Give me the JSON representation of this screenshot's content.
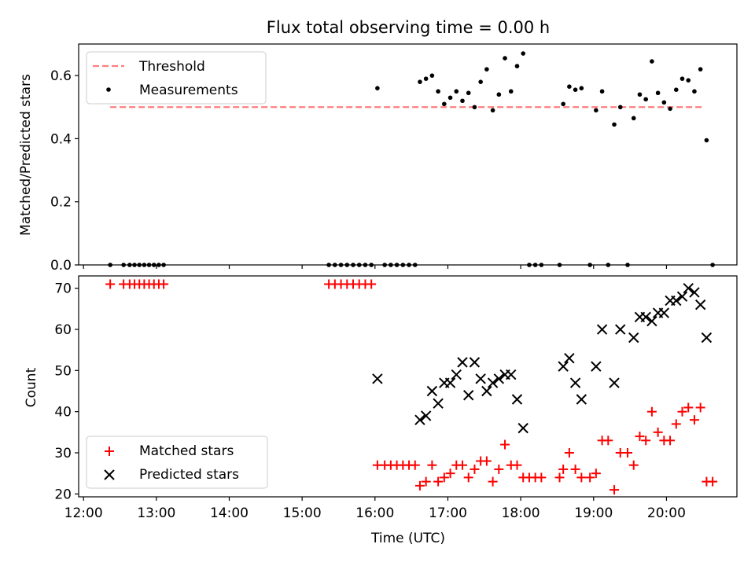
{
  "chart_data": [
    {
      "type": "scatter",
      "title": "Flux total observing time = 0.00 h",
      "xlabel": "",
      "ylabel": "Matched/Predicted stars",
      "xlim": [
        "11:56",
        "20:58"
      ],
      "ylim": [
        0,
        0.7
      ],
      "yticks": [
        0.0,
        0.2,
        0.4,
        0.6
      ],
      "ytick_labels": [
        "0.0",
        "0.2",
        "0.4",
        "0.6"
      ],
      "grid": false,
      "legend_position": "top-left",
      "threshold": {
        "name": "Threshold",
        "y": 0.5,
        "x_start": "12:22",
        "x_end": "20:29",
        "color": "#ff7f7f",
        "style": "dashed"
      },
      "series": [
        {
          "name": "Measurements",
          "color": "#000000",
          "marker": "dot",
          "points": [
            [
              "12:22",
              0
            ],
            [
              "12:33",
              0
            ],
            [
              "12:38",
              0
            ],
            [
              "12:42",
              0
            ],
            [
              "12:46",
              0
            ],
            [
              "12:50",
              0
            ],
            [
              "12:54",
              0
            ],
            [
              "12:58",
              0
            ],
            [
              "13:02",
              0
            ],
            [
              "13:06",
              0
            ],
            [
              "15:22",
              0
            ],
            [
              "15:27",
              0
            ],
            [
              "15:32",
              0
            ],
            [
              "15:37",
              0
            ],
            [
              "15:42",
              0
            ],
            [
              "15:47",
              0
            ],
            [
              "15:52",
              0
            ],
            [
              "15:57",
              0
            ],
            [
              "16:02",
              0.56
            ],
            [
              "16:08",
              0
            ],
            [
              "16:13",
              0
            ],
            [
              "16:18",
              0
            ],
            [
              "16:23",
              0
            ],
            [
              "16:28",
              0
            ],
            [
              "16:33",
              0
            ],
            [
              "16:37",
              0.58
            ],
            [
              "16:42",
              0.59
            ],
            [
              "16:47",
              0.6
            ],
            [
              "16:52",
              0.55
            ],
            [
              "16:57",
              0.51
            ],
            [
              "17:02",
              0.53
            ],
            [
              "17:07",
              0.55
            ],
            [
              "17:12",
              0.52
            ],
            [
              "17:17",
              0.545
            ],
            [
              "17:22",
              0.5
            ],
            [
              "17:27",
              0.58
            ],
            [
              "17:32",
              0.62
            ],
            [
              "17:37",
              0.49
            ],
            [
              "17:42",
              0.54
            ],
            [
              "17:47",
              0.655
            ],
            [
              "17:52",
              0.55
            ],
            [
              "17:57",
              0.63
            ],
            [
              "18:02",
              0.67
            ],
            [
              "18:07",
              0
            ],
            [
              "18:12",
              0
            ],
            [
              "18:17",
              0
            ],
            [
              "18:32",
              0
            ],
            [
              "18:35",
              0.51
            ],
            [
              "18:40",
              0.565
            ],
            [
              "18:45",
              0.555
            ],
            [
              "18:50",
              0.56
            ],
            [
              "18:57",
              0
            ],
            [
              "19:02",
              0.49
            ],
            [
              "19:07",
              0.55
            ],
            [
              "19:12",
              0
            ],
            [
              "19:17",
              0.445
            ],
            [
              "19:22",
              0.5
            ],
            [
              "19:28",
              0
            ],
            [
              "19:33",
              0.465
            ],
            [
              "19:38",
              0.54
            ],
            [
              "19:43",
              0.525
            ],
            [
              "19:48",
              0.645
            ],
            [
              "19:53",
              0.545
            ],
            [
              "19:58",
              0.515
            ],
            [
              "20:03",
              0.495
            ],
            [
              "20:08",
              0.555
            ],
            [
              "20:13",
              0.59
            ],
            [
              "20:18",
              0.585
            ],
            [
              "20:23",
              0.55
            ],
            [
              "20:28",
              0.62
            ],
            [
              "20:33",
              0.395
            ],
            [
              "20:38",
              0
            ]
          ]
        }
      ]
    },
    {
      "type": "scatter",
      "title": "",
      "xlabel": "Time (UTC)",
      "ylabel": "Count",
      "xlim": [
        "11:56",
        "20:58"
      ],
      "ylim": [
        19.3,
        73
      ],
      "xticks": [
        "12:00",
        "13:00",
        "14:00",
        "15:00",
        "16:00",
        "17:00",
        "18:00",
        "19:00",
        "20:00"
      ],
      "yticks": [
        20,
        30,
        40,
        50,
        60,
        70
      ],
      "ytick_labels": [
        "20",
        "30",
        "40",
        "50",
        "60",
        "70"
      ],
      "grid": false,
      "legend_position": "bottom-left",
      "series": [
        {
          "name": "Matched stars",
          "color": "#ff0000",
          "marker": "plus",
          "points": [
            [
              "12:22",
              71
            ],
            [
              "12:33",
              71
            ],
            [
              "12:38",
              71
            ],
            [
              "12:42",
              71
            ],
            [
              "12:46",
              71
            ],
            [
              "12:50",
              71
            ],
            [
              "12:54",
              71
            ],
            [
              "12:58",
              71
            ],
            [
              "13:02",
              71
            ],
            [
              "13:06",
              71
            ],
            [
              "15:22",
              71
            ],
            [
              "15:27",
              71
            ],
            [
              "15:32",
              71
            ],
            [
              "15:37",
              71
            ],
            [
              "15:42",
              71
            ],
            [
              "15:47",
              71
            ],
            [
              "15:52",
              71
            ],
            [
              "15:57",
              71
            ],
            [
              "16:02",
              27
            ],
            [
              "16:08",
              27
            ],
            [
              "16:13",
              27
            ],
            [
              "16:18",
              27
            ],
            [
              "16:23",
              27
            ],
            [
              "16:28",
              27
            ],
            [
              "16:33",
              27
            ],
            [
              "16:37",
              22
            ],
            [
              "16:42",
              23
            ],
            [
              "16:47",
              27
            ],
            [
              "16:52",
              23
            ],
            [
              "16:57",
              24
            ],
            [
              "17:02",
              25
            ],
            [
              "17:07",
              27
            ],
            [
              "17:12",
              27
            ],
            [
              "17:17",
              24
            ],
            [
              "17:22",
              26
            ],
            [
              "17:27",
              28
            ],
            [
              "17:32",
              28
            ],
            [
              "17:37",
              23
            ],
            [
              "17:42",
              26
            ],
            [
              "17:47",
              32
            ],
            [
              "17:52",
              27
            ],
            [
              "17:57",
              27
            ],
            [
              "18:02",
              24
            ],
            [
              "18:07",
              24
            ],
            [
              "18:12",
              24
            ],
            [
              "18:17",
              24
            ],
            [
              "18:32",
              24
            ],
            [
              "18:35",
              26
            ],
            [
              "18:40",
              30
            ],
            [
              "18:45",
              26
            ],
            [
              "18:50",
              24
            ],
            [
              "18:57",
              24
            ],
            [
              "19:02",
              25
            ],
            [
              "19:07",
              33
            ],
            [
              "19:12",
              33
            ],
            [
              "19:17",
              21
            ],
            [
              "19:22",
              30
            ],
            [
              "19:28",
              30
            ],
            [
              "19:33",
              27
            ],
            [
              "19:38",
              34
            ],
            [
              "19:43",
              33
            ],
            [
              "19:48",
              40
            ],
            [
              "19:53",
              35
            ],
            [
              "19:58",
              33
            ],
            [
              "20:03",
              33
            ],
            [
              "20:08",
              37
            ],
            [
              "20:13",
              40
            ],
            [
              "20:18",
              41
            ],
            [
              "20:23",
              38
            ],
            [
              "20:28",
              41
            ],
            [
              "20:33",
              23
            ],
            [
              "20:38",
              23
            ]
          ]
        },
        {
          "name": "Predicted stars",
          "color": "#000000",
          "marker": "x",
          "points": [
            [
              "16:02",
              48
            ],
            [
              "16:37",
              38
            ],
            [
              "16:42",
              39
            ],
            [
              "16:47",
              45
            ],
            [
              "16:52",
              42
            ],
            [
              "16:57",
              47
            ],
            [
              "17:02",
              47
            ],
            [
              "17:07",
              49
            ],
            [
              "17:12",
              52
            ],
            [
              "17:17",
              44
            ],
            [
              "17:22",
              52
            ],
            [
              "17:27",
              48
            ],
            [
              "17:32",
              45
            ],
            [
              "17:37",
              47
            ],
            [
              "17:42",
              48
            ],
            [
              "17:47",
              49
            ],
            [
              "17:52",
              49
            ],
            [
              "17:57",
              43
            ],
            [
              "18:02",
              36
            ],
            [
              "18:35",
              51
            ],
            [
              "18:40",
              53
            ],
            [
              "18:45",
              47
            ],
            [
              "18:50",
              43
            ],
            [
              "19:02",
              51
            ],
            [
              "19:07",
              60
            ],
            [
              "19:17",
              47
            ],
            [
              "19:22",
              60
            ],
            [
              "19:33",
              58
            ],
            [
              "19:38",
              63
            ],
            [
              "19:43",
              63
            ],
            [
              "19:48",
              62
            ],
            [
              "19:53",
              64
            ],
            [
              "19:58",
              64
            ],
            [
              "20:03",
              67
            ],
            [
              "20:08",
              67
            ],
            [
              "20:13",
              68
            ],
            [
              "20:18",
              70
            ],
            [
              "20:23",
              69
            ],
            [
              "20:28",
              66
            ],
            [
              "20:33",
              58
            ]
          ]
        }
      ]
    }
  ]
}
